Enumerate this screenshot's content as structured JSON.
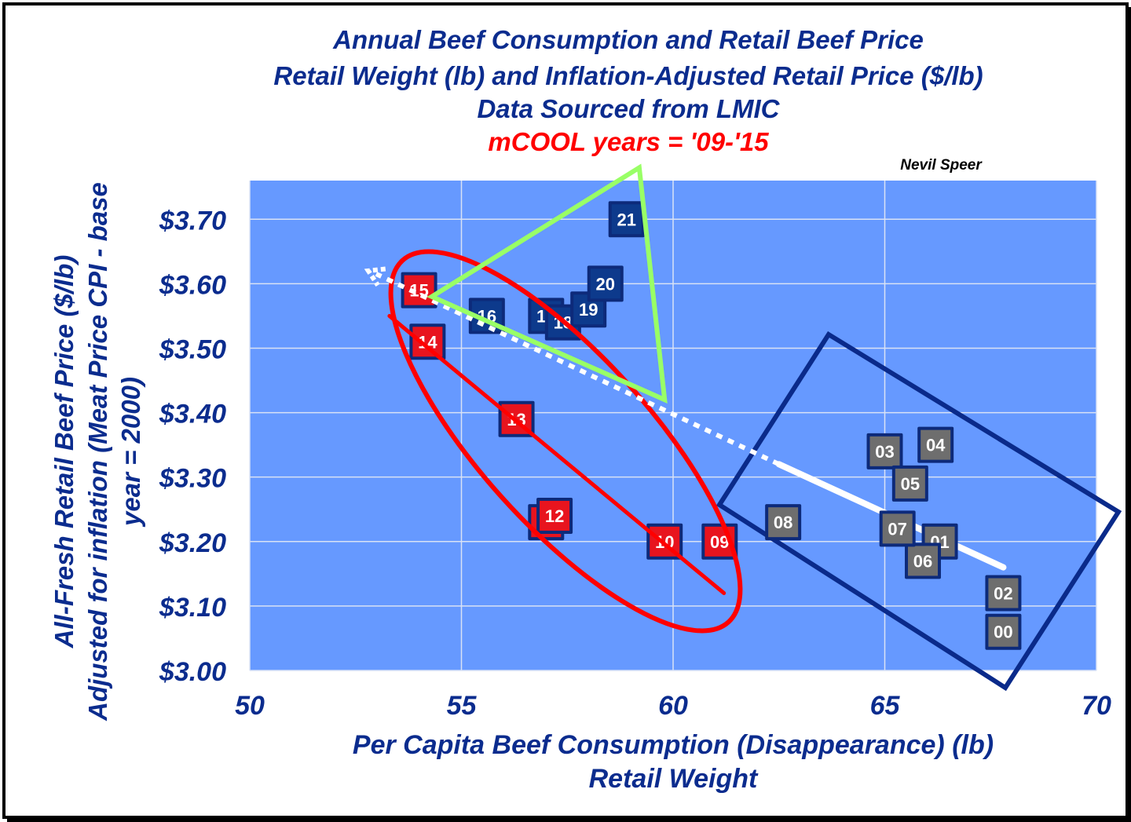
{
  "colors": {
    "plot_bg": "#6699ff",
    "title_blue": "#0b2c8e",
    "mcool_red": "#ff0000",
    "marker_dark_blue": "#0d3a8c",
    "marker_red": "#e8141e",
    "marker_gray": "#6e6e6e",
    "triangle_green": "#99ff66",
    "box_navy": "#0a2a8a",
    "trend_white": "#ffffff"
  },
  "chart_data": {
    "type": "scatter",
    "title": "Annual Beef Consumption and Retail Beef Price",
    "subtitle_lines": [
      "Retail Weight (lb) and Inflation-Adjusted Retail Price ($/lb)",
      "Data Sourced from LMIC"
    ],
    "highlight_note": "mCOOL years = '09-'15",
    "author": "Nevil Speer",
    "xlabel_lines": [
      "Per Capita Beef Consumption (Disappearance) (lb)",
      "Retail Weight"
    ],
    "ylabel_lines": [
      "All-Fresh Retail Beef Price ($/lb)",
      "Adjusted for inflation (Meat Price CPI - base",
      "year = 2000)"
    ],
    "xlim": [
      50,
      70
    ],
    "ylim": [
      3.0,
      3.76
    ],
    "x_ticks": [
      50,
      55,
      60,
      65,
      70
    ],
    "x_tick_labels": [
      "50",
      "55",
      "60",
      "65",
      "70"
    ],
    "y_ticks": [
      3.0,
      3.1,
      3.2,
      3.3,
      3.4,
      3.5,
      3.6,
      3.7
    ],
    "y_tick_labels": [
      "$3.00",
      "$3.10",
      "$3.20",
      "$3.30",
      "$3.40",
      "$3.50",
      "$3.60",
      "$3.70"
    ],
    "grid": true,
    "points": [
      {
        "label": "00",
        "x": 67.8,
        "y": 3.06,
        "group": "early"
      },
      {
        "label": "01",
        "x": 66.3,
        "y": 3.2,
        "group": "early"
      },
      {
        "label": "02",
        "x": 67.8,
        "y": 3.12,
        "group": "early"
      },
      {
        "label": "03",
        "x": 65.0,
        "y": 3.34,
        "group": "early"
      },
      {
        "label": "04",
        "x": 66.2,
        "y": 3.35,
        "group": "early"
      },
      {
        "label": "05",
        "x": 65.6,
        "y": 3.29,
        "group": "early"
      },
      {
        "label": "06",
        "x": 65.9,
        "y": 3.17,
        "group": "early"
      },
      {
        "label": "07",
        "x": 65.3,
        "y": 3.22,
        "group": "early"
      },
      {
        "label": "08",
        "x": 62.6,
        "y": 3.23,
        "group": "early"
      },
      {
        "label": "09",
        "x": 61.1,
        "y": 3.2,
        "group": "mcool"
      },
      {
        "label": "10",
        "x": 59.8,
        "y": 3.2,
        "group": "mcool"
      },
      {
        "label": "11",
        "x": 57.0,
        "y": 3.23,
        "group": "mcool"
      },
      {
        "label": "12",
        "x": 57.2,
        "y": 3.24,
        "group": "mcool"
      },
      {
        "label": "13",
        "x": 56.3,
        "y": 3.39,
        "group": "mcool"
      },
      {
        "label": "14",
        "x": 54.2,
        "y": 3.51,
        "group": "mcool"
      },
      {
        "label": "15",
        "x": 54.0,
        "y": 3.59,
        "group": "mcool"
      },
      {
        "label": "16",
        "x": 55.6,
        "y": 3.55,
        "group": "recent"
      },
      {
        "label": "17",
        "x": 57.0,
        "y": 3.55,
        "group": "recent"
      },
      {
        "label": "18",
        "x": 57.4,
        "y": 3.54,
        "group": "recent"
      },
      {
        "label": "19",
        "x": 58.0,
        "y": 3.56,
        "group": "recent"
      },
      {
        "label": "20",
        "x": 58.4,
        "y": 3.6,
        "group": "recent"
      },
      {
        "label": "21",
        "x": 58.9,
        "y": 3.7,
        "group": "recent"
      }
    ],
    "annotations": [
      {
        "type": "ellipse",
        "description": "red ellipse around mCOOL years",
        "color": "#ff0000"
      },
      {
        "type": "line",
        "description": "red trend line through mCOOL years",
        "from": [
          53.3,
          3.55
        ],
        "to": [
          61.2,
          3.12
        ],
        "color": "#ff0000"
      },
      {
        "type": "triangle",
        "description": "green triangle around 2016-2021",
        "vertices": [
          [
            54.3,
            3.58
          ],
          [
            59.2,
            3.78
          ],
          [
            59.8,
            3.42
          ]
        ],
        "color": "#99ff66"
      },
      {
        "type": "rotated_box",
        "description": "navy box around 2000-2008"
      },
      {
        "type": "arrow",
        "description": "white dotted trend arrow",
        "from": [
          62.5,
          3.32
        ],
        "to": [
          52.8,
          3.62
        ],
        "style": "dotted"
      },
      {
        "type": "line",
        "description": "white solid trend segment",
        "from": [
          62.5,
          3.32
        ],
        "to": [
          67.8,
          3.16
        ],
        "style": "solid"
      }
    ]
  }
}
